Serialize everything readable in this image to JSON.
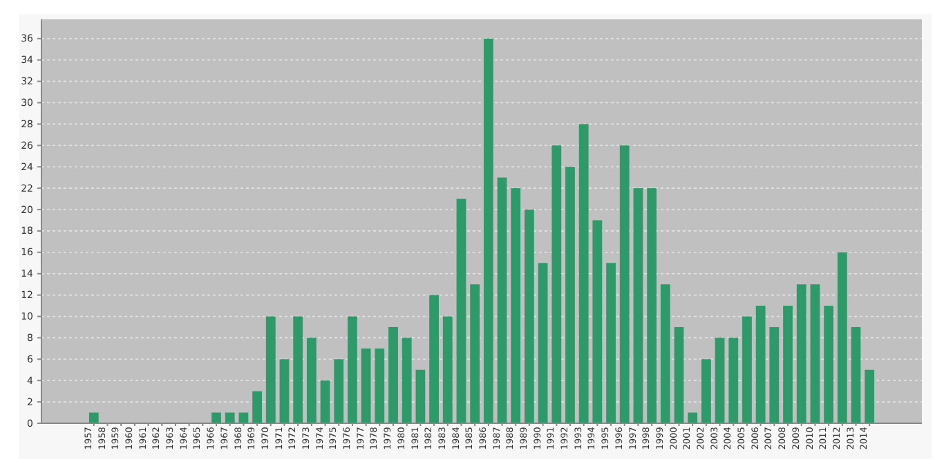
{
  "chart_data": {
    "type": "bar",
    "categories": [
      "1957",
      "1958",
      "1959",
      "1960",
      "1961",
      "1962",
      "1963",
      "1964",
      "1965",
      "1966",
      "1967",
      "1968",
      "1969",
      "1970",
      "1971",
      "1972",
      "1973",
      "1974",
      "1975",
      "1976",
      "1977",
      "1978",
      "1979",
      "1980",
      "1981",
      "1982",
      "1983",
      "1984",
      "1985",
      "1986",
      "1987",
      "1988",
      "1989",
      "1990",
      "1991",
      "1992",
      "1993",
      "1994",
      "1995",
      "1996",
      "1997",
      "1998",
      "1999",
      "2000",
      "2001",
      "2002",
      "2003",
      "2004",
      "2005",
      "2006",
      "2007",
      "2008",
      "2009",
      "2010",
      "2011",
      "2012",
      "2013",
      "2014"
    ],
    "values": [
      1,
      0,
      0,
      0,
      0,
      0,
      0,
      0,
      0,
      1,
      1,
      1,
      3,
      10,
      6,
      10,
      8,
      4,
      6,
      10,
      7,
      7,
      9,
      8,
      5,
      12,
      10,
      21,
      13,
      36,
      23,
      22,
      20,
      15,
      26,
      24,
      28,
      19,
      15,
      26,
      22,
      22,
      13,
      9,
      1,
      6,
      8,
      8,
      10,
      11,
      9,
      11,
      13,
      13,
      11,
      16,
      9,
      5
    ],
    "color": "#2e9a6a",
    "ylim": [
      0,
      37.8
    ],
    "yticks": [
      0,
      2,
      4,
      6,
      8,
      10,
      12,
      14,
      16,
      18,
      20,
      22,
      24,
      26,
      28,
      30,
      32,
      34,
      36
    ],
    "grid": "y"
  }
}
